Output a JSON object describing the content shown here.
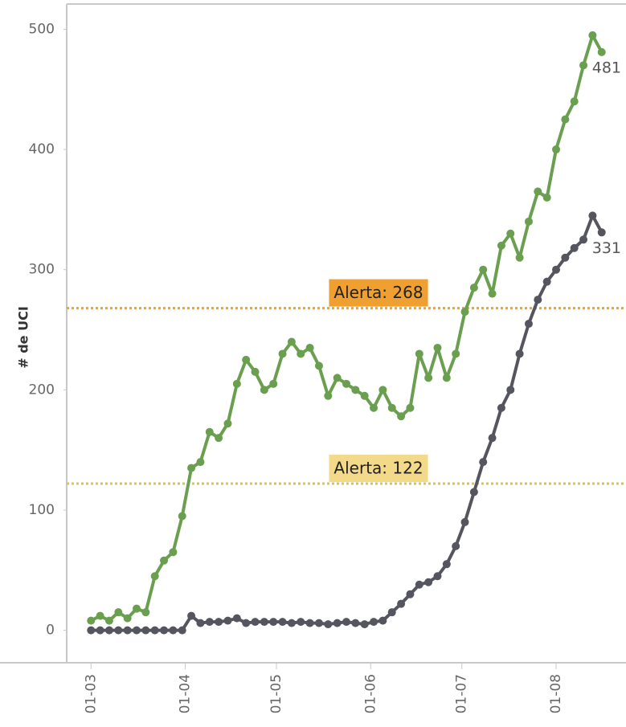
{
  "chart_data": {
    "type": "line",
    "y_label": "# de UCI",
    "x": [
      "01-03",
      "04-03",
      "07-03",
      "10-03",
      "13-03",
      "16-03",
      "19-03",
      "22-03",
      "25-03",
      "28-03",
      "31-03",
      "03-04",
      "06-04",
      "09-04",
      "12-04",
      "15-04",
      "18-04",
      "21-04",
      "24-04",
      "27-04",
      "30-04",
      "03-05",
      "06-05",
      "09-05",
      "12-05",
      "15-05",
      "18-05",
      "21-05",
      "24-05",
      "27-05",
      "30-05",
      "02-06",
      "05-06",
      "08-06",
      "11-06",
      "14-06",
      "17-06",
      "20-06",
      "23-06",
      "26-06",
      "29-06",
      "02-07",
      "05-07",
      "08-07",
      "11-07",
      "14-07",
      "17-07",
      "20-07",
      "23-07",
      "26-07",
      "29-07",
      "01-08",
      "04-08",
      "07-08",
      "10-08",
      "13-08",
      "16-08"
    ],
    "series": [
      {
        "color": "#6a9f4f",
        "values": [
          8,
          12,
          8,
          15,
          10,
          18,
          15,
          45,
          58,
          65,
          95,
          135,
          140,
          165,
          160,
          172,
          205,
          225,
          215,
          200,
          205,
          230,
          240,
          230,
          235,
          220,
          195,
          210,
          205,
          200,
          195,
          185,
          200,
          185,
          178,
          185,
          230,
          210,
          235,
          210,
          230,
          265,
          285,
          300,
          280,
          320,
          330,
          310,
          340,
          365,
          360,
          400,
          425,
          440,
          470,
          495,
          481
        ]
      },
      {
        "color": "#55555f",
        "values": [
          0,
          0,
          0,
          0,
          0,
          0,
          0,
          0,
          0,
          0,
          0,
          12,
          6,
          7,
          7,
          8,
          10,
          6,
          7,
          7,
          7,
          7,
          6,
          7,
          6,
          6,
          5,
          6,
          7,
          6,
          5,
          7,
          8,
          15,
          22,
          30,
          38,
          40,
          45,
          55,
          70,
          90,
          115,
          140,
          160,
          185,
          200,
          230,
          255,
          275,
          290,
          300,
          310,
          318,
          325,
          345,
          331
        ]
      }
    ],
    "annotations": [
      {
        "value": 268,
        "label": "Alerta: 268",
        "color": "#e8a33d",
        "label_bg": "#f0a030"
      },
      {
        "value": 122,
        "label": "Alerta: 122",
        "color": "#dcc34a",
        "label_bg": "#f3d98a"
      }
    ],
    "xlim": [
      "21-02",
      "24-08"
    ],
    "xticks": [
      "01-03",
      "01-04",
      "01-05",
      "01-06",
      "01-07",
      "01-08"
    ],
    "ylim": [
      -27,
      521
    ],
    "yticks": [
      0,
      100,
      200,
      300,
      400,
      500
    ]
  }
}
